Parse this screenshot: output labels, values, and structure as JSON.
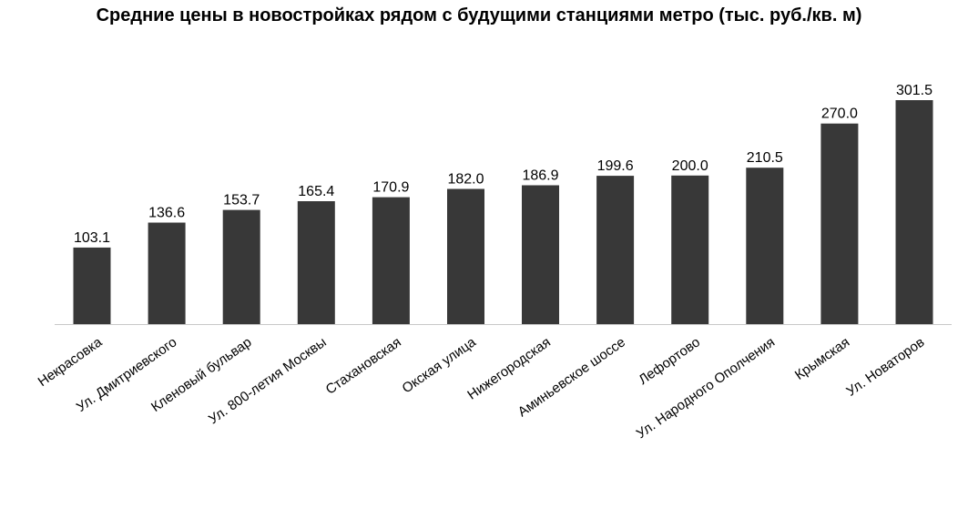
{
  "chart_data": {
    "type": "bar",
    "title": "Средние цены в новостройках рядом с будущими станциями метро (тыс. руб./кв. м)",
    "xlabel": "",
    "ylabel": "",
    "categories": [
      "Некрасовка",
      "Ул. Дмитриевского",
      "Кленовый бульвар",
      "Ул. 800-летия Москвы",
      "Стахановская",
      "Окская улица",
      "Нижегородская",
      "Аминьевское шоссе",
      "Лефортово",
      "Ул. Народного Ополчения",
      "Крымская",
      "Ул. Новаторов"
    ],
    "values": [
      103.1,
      136.6,
      153.7,
      165.4,
      170.9,
      182.0,
      186.9,
      199.6,
      200.0,
      210.5,
      270.0,
      301.5
    ],
    "data_labels": [
      "103.1",
      "136.6",
      "153.7",
      "165.4",
      "170.9",
      "182.0",
      "186.9",
      "199.6",
      "200.0",
      "210.5",
      "270.0",
      "301.5"
    ],
    "ylim": [
      0,
      330
    ],
    "grid": false,
    "legend": "none",
    "bar_color": "#383838"
  }
}
